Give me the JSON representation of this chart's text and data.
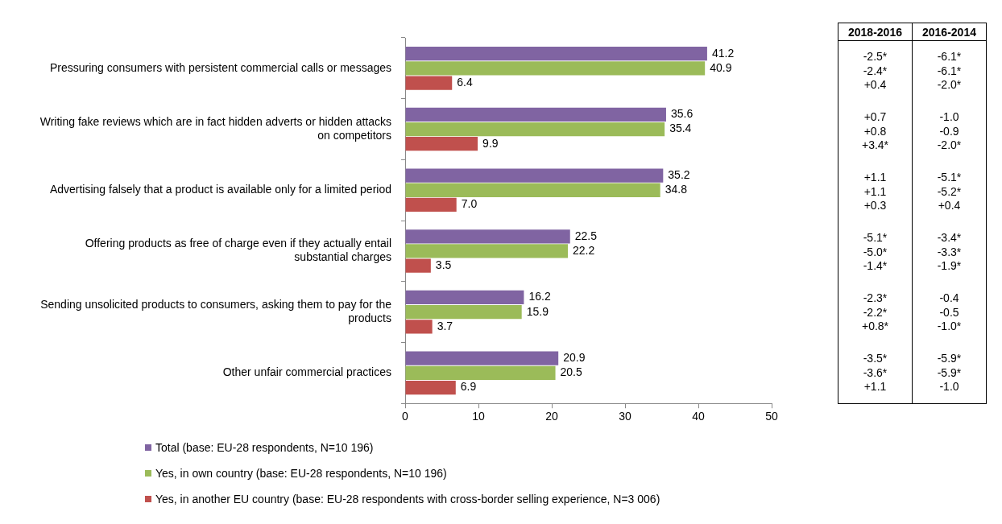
{
  "chart_data": [
    {
      "type": "bar",
      "orientation": "horizontal",
      "categories": [
        "Pressuring consumers with persistent commercial calls or messages",
        "Writing fake reviews which are in fact hidden adverts or hidden attacks on competitors",
        "Advertising falsely that a product is available only for a limited period",
        "Offering products as free of charge even if they actually entail substantial charges",
        "Sending unsolicited products to consumers, asking them to pay for the products",
        "Other unfair commercial practices"
      ],
      "series": [
        {
          "name": "Total (base: EU-28 respondents, N=10 196)",
          "color": "#8064a2",
          "values": [
            41.2,
            35.6,
            35.2,
            22.5,
            16.2,
            20.9
          ],
          "value_labels": [
            "41.2",
            "35.6",
            "35.2",
            "22.5",
            "16.2",
            "20.9"
          ]
        },
        {
          "name": "Yes, in own country (base: EU-28 respondents, N=10 196)",
          "color": "#9bbb59",
          "values": [
            40.9,
            35.4,
            34.8,
            22.2,
            15.9,
            20.5
          ],
          "value_labels": [
            "40.9",
            "35.4",
            "34.8",
            "22.2",
            "15.9",
            "20.5"
          ]
        },
        {
          "name": "Yes, in another EU country (base: EU-28 respondents with cross-border selling experience, N=3 006)",
          "color": "#c0504d",
          "values": [
            6.4,
            9.9,
            7.0,
            3.5,
            3.7,
            6.9
          ],
          "value_labels": [
            "6.4",
            "9.9",
            "7.0",
            "3.5",
            "3.7",
            "6.9"
          ]
        }
      ],
      "xlim": [
        0,
        50
      ],
      "xticks": [
        0,
        10,
        20,
        30,
        40,
        50
      ],
      "grid": false,
      "legend": "bottom"
    },
    {
      "type": "other",
      "categories": [
        "2018-2016",
        "2016-2014"
      ],
      "cell_labels": [
        [
          "-2.5*",
          "-6.1*"
        ],
        [
          "-2.4*",
          "-6.1*"
        ],
        [
          "+0.4",
          "-2.0*"
        ],
        [
          "+0.7",
          "-1.0"
        ],
        [
          "+0.8",
          "-0.9"
        ],
        [
          "+3.4*",
          "-2.0*"
        ],
        [
          "+1.1",
          "-5.1*"
        ],
        [
          "+1.1",
          "-5.2*"
        ],
        [
          "+0.3",
          "+0.4"
        ],
        [
          "-5.1*",
          "-3.4*"
        ],
        [
          "-5.0*",
          "-3.3*"
        ],
        [
          "-1.4*",
          "-1.9*"
        ],
        [
          "-2.3*",
          "-0.4"
        ],
        [
          "-2.2*",
          "-0.5"
        ],
        [
          "+0.8*",
          "-1.0*"
        ],
        [
          "-3.5*",
          "-5.9*"
        ],
        [
          "-3.6*",
          "-5.9*"
        ],
        [
          "+1.1",
          "-1.0"
        ]
      ]
    }
  ]
}
